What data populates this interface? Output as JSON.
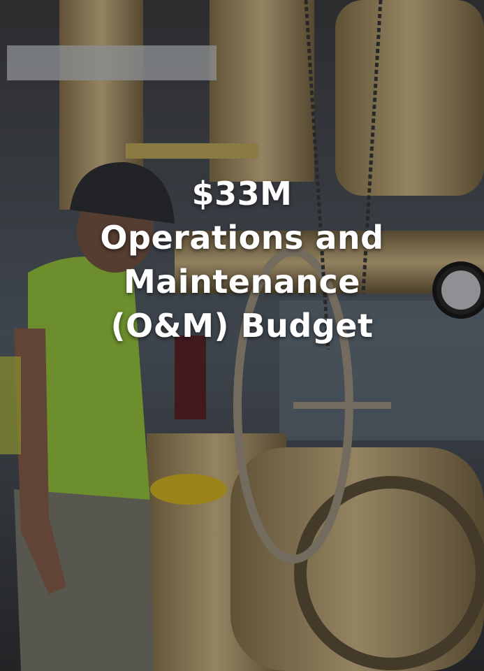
{
  "card": {
    "figure": "$33M",
    "label_lines": [
      "Operations and",
      "Maintenance",
      "(O&M) Budget"
    ]
  }
}
